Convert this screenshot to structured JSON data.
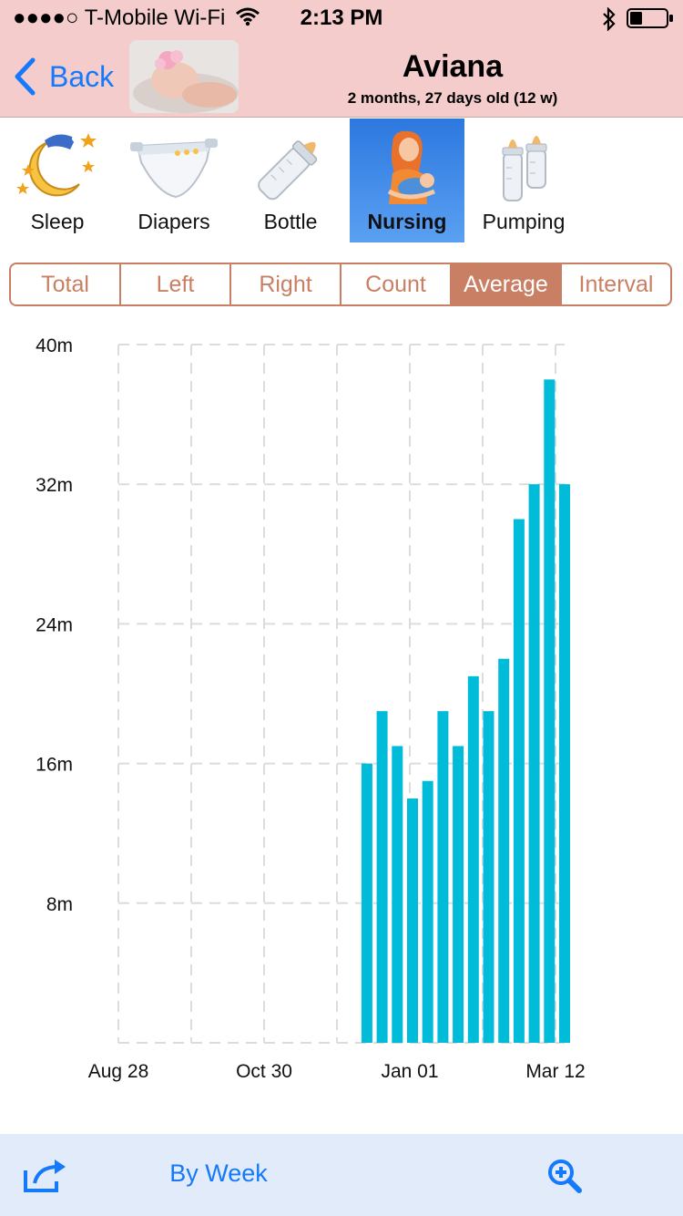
{
  "status_bar": {
    "carrier": "●●●●○ T-Mobile Wi-Fi",
    "time": "2:13 PM"
  },
  "nav": {
    "back_label": "Back",
    "baby_name": "Aviana",
    "age": "2 months, 27 days old (12 w)"
  },
  "categories": [
    {
      "label": "Sleep",
      "icon": "moon-stars-icon"
    },
    {
      "label": "Diapers",
      "icon": "diaper-icon"
    },
    {
      "label": "Bottle",
      "icon": "baby-bottle-icon"
    },
    {
      "label": "Nursing",
      "icon": "nursing-mother-icon",
      "active": true
    },
    {
      "label": "Pumping",
      "icon": "pump-bottles-icon"
    }
  ],
  "segments": [
    {
      "label": "Total"
    },
    {
      "label": "Left"
    },
    {
      "label": "Right"
    },
    {
      "label": "Count"
    },
    {
      "label": "Average",
      "active": true
    },
    {
      "label": "Interval"
    }
  ],
  "chart_data": {
    "type": "bar",
    "bar_color": "#00bcd9",
    "y_unit": "minutes",
    "ylim": [
      0,
      40
    ],
    "y_ticks": [
      {
        "value": 8,
        "label": "8m"
      },
      {
        "value": 16,
        "label": "16m"
      },
      {
        "value": 24,
        "label": "24m"
      },
      {
        "value": 32,
        "label": "32m"
      },
      {
        "value": 40,
        "label": "40m"
      }
    ],
    "x_tick_labels": [
      "Aug 28",
      "Oct 30",
      "Jan 01",
      "Mar 12"
    ],
    "grid": true,
    "values": [
      16,
      19,
      17,
      14,
      15,
      19,
      17,
      21,
      19,
      22,
      30,
      32,
      38,
      32
    ]
  },
  "toolbar": {
    "group_label": "By Week",
    "share_icon": "share-icon",
    "zoom_icon": "zoom-in-icon"
  },
  "colors": {
    "nav_background": "#f4cccc",
    "accent_blue": "#1479fb",
    "segment_accent": "#c97f63",
    "toolbar_background": "#e1ebf9"
  }
}
